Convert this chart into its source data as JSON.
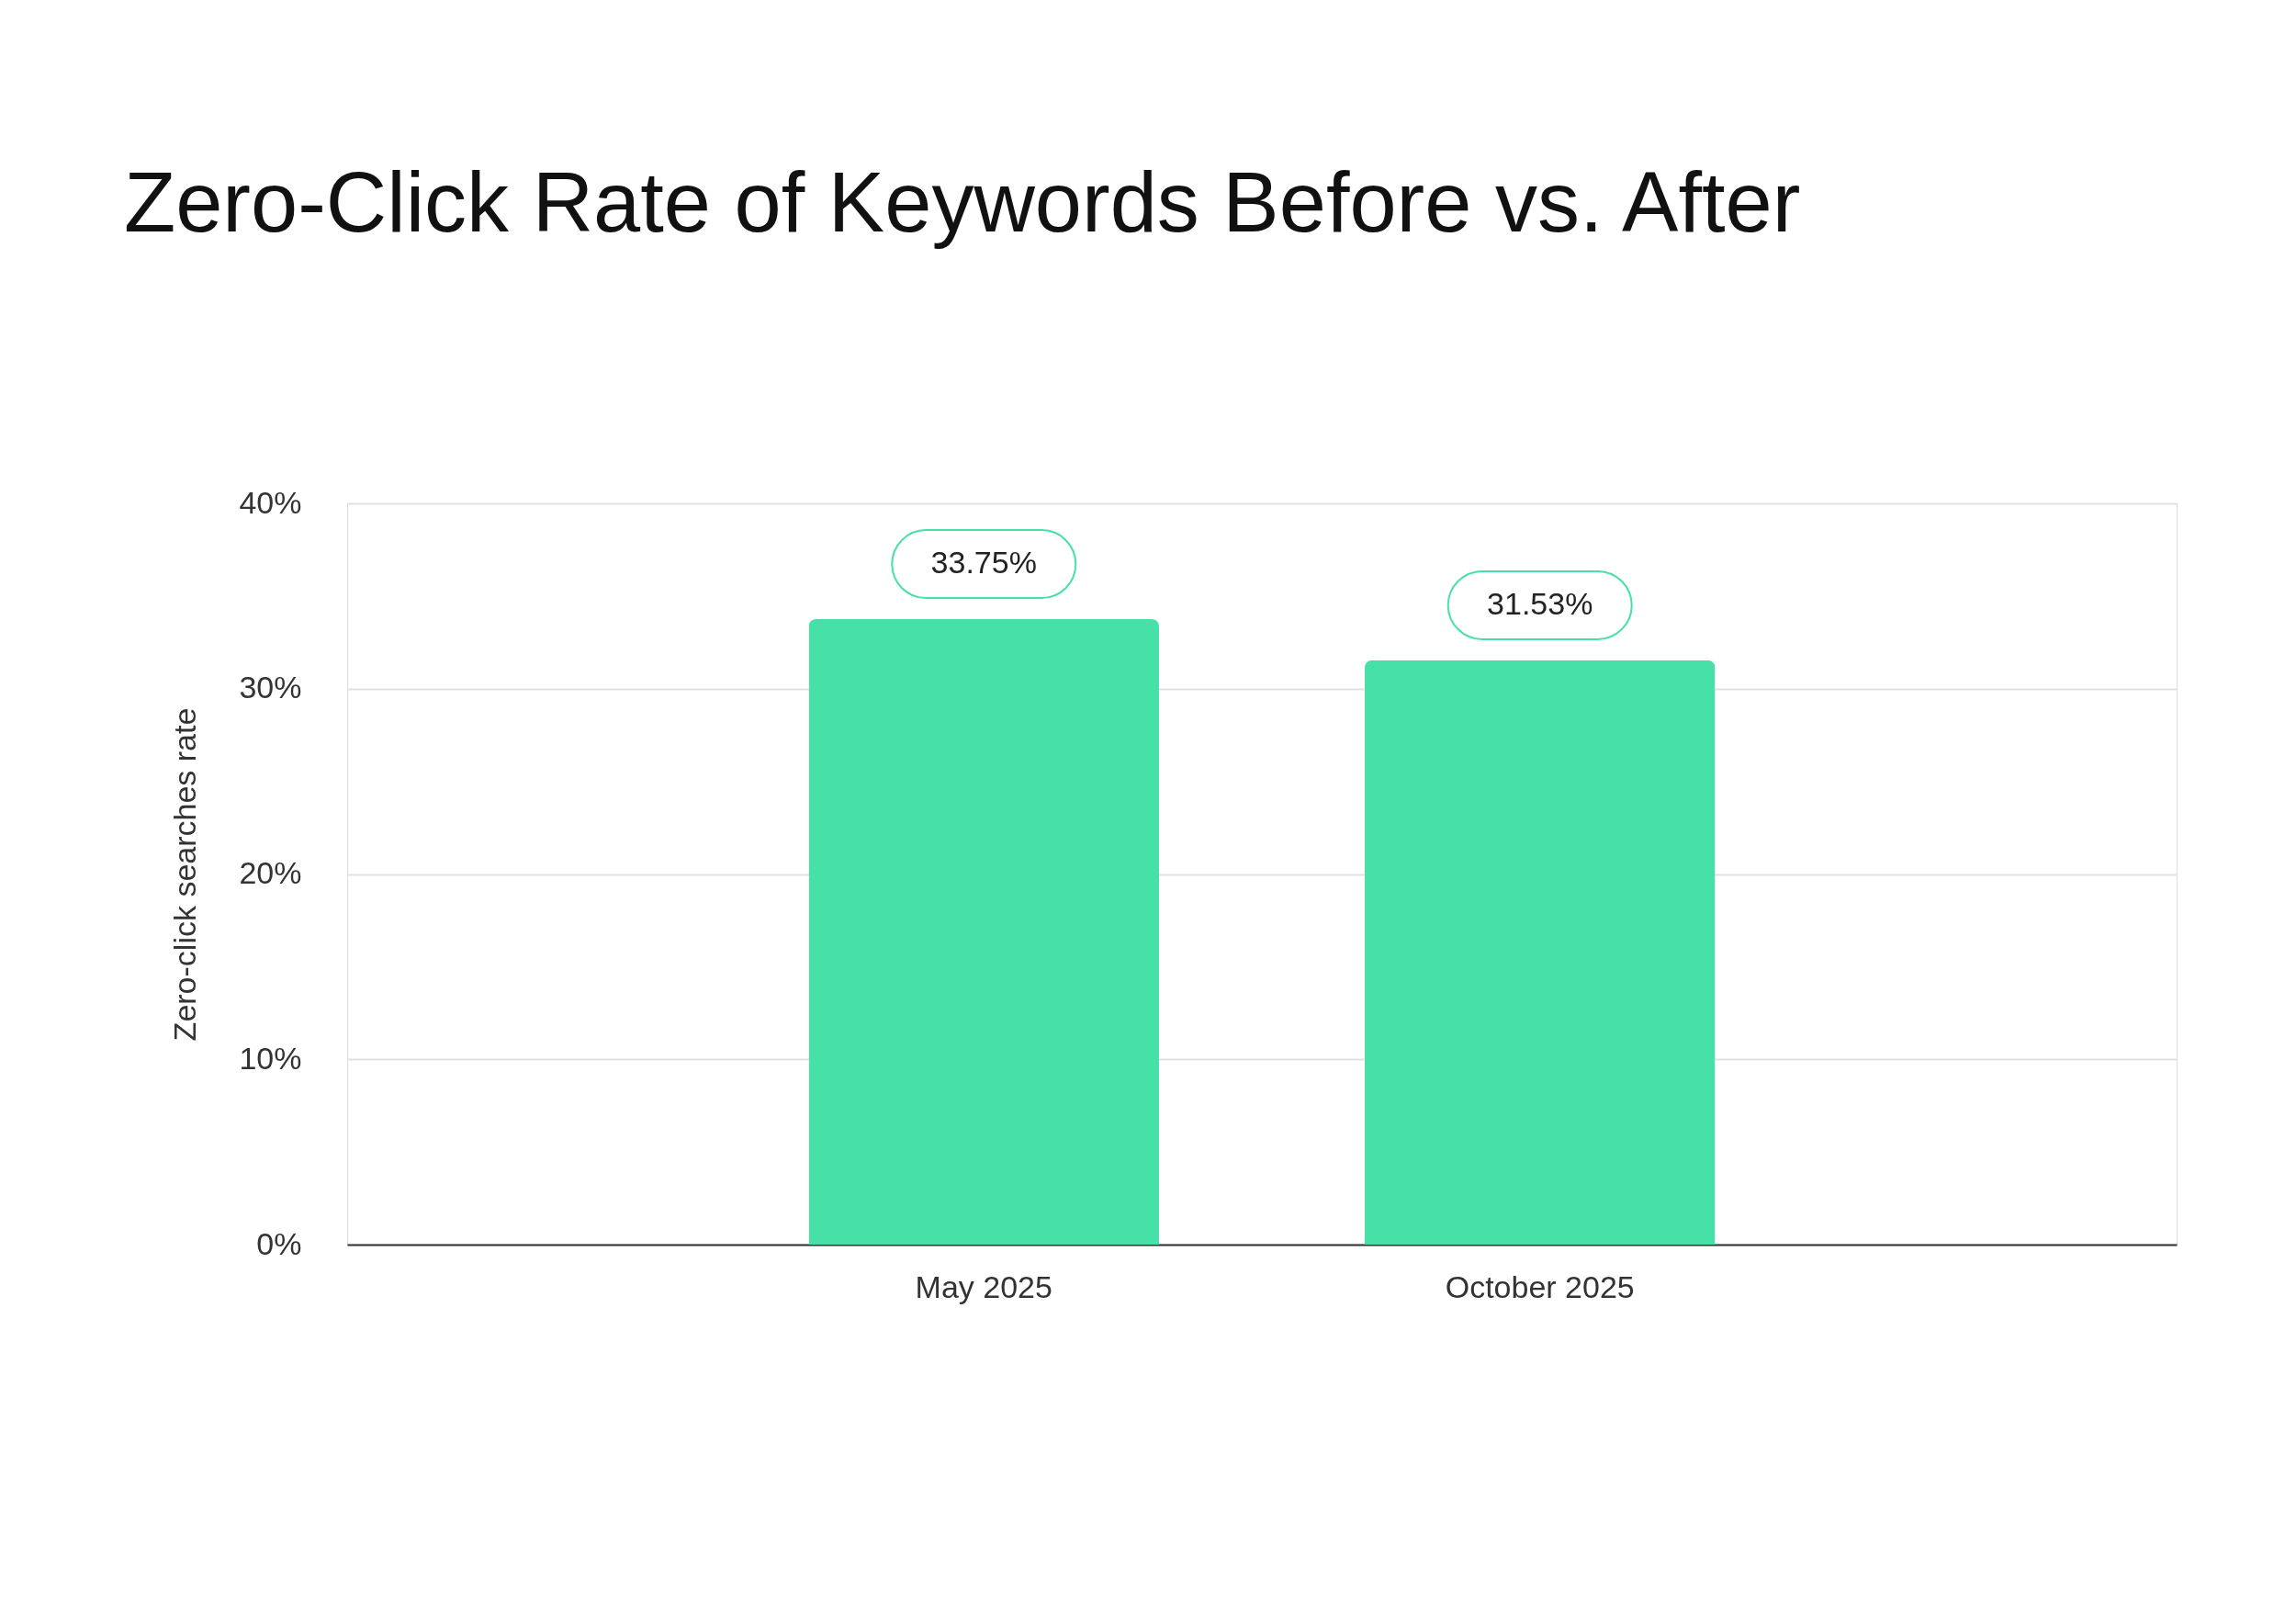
{
  "chart_data": {
    "type": "bar",
    "title": "Zero-Click Rate of Keywords Before vs. After",
    "ylabel": "Zero-click searches rate",
    "categories": [
      "May 2025",
      "October 2025"
    ],
    "values": [
      33.75,
      31.53
    ],
    "color": "#47e0a6",
    "value_labels": [
      "33.75%",
      "31.53%"
    ],
    "ylim": [
      0,
      40
    ],
    "yticks": [
      {
        "value": 0,
        "label": "0%"
      },
      {
        "value": 10,
        "label": "10%"
      },
      {
        "value": 20,
        "label": "20%"
      },
      {
        "value": 30,
        "label": "30%"
      },
      {
        "value": 40,
        "label": "40%"
      }
    ],
    "grid": "y"
  }
}
